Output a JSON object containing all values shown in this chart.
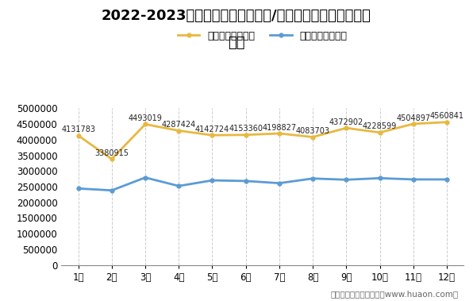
{
  "title_line1": "2022-2023年江苏省（境内目的地/货源地）进、出口额月度",
  "title_line2": "统计",
  "months": [
    "1月",
    "2月",
    "3月",
    "4月",
    "5月",
    "6月",
    "7月",
    "8月",
    "9月",
    "10月",
    "11月",
    "12月"
  ],
  "export_values": [
    4131783,
    3380915,
    4493019,
    4287424,
    4142724,
    4153360,
    4198827,
    4083703,
    4372902,
    4228599,
    4504897,
    4560841
  ],
  "import_values": [
    2440000,
    2380000,
    2790000,
    2520000,
    2700000,
    2680000,
    2610000,
    2760000,
    2720000,
    2770000,
    2730000,
    2730000
  ],
  "export_color": "#E8B840",
  "import_color": "#5B9BD5",
  "export_label": "出口额（万美元）",
  "import_label": "进口额（万美元）",
  "ylim_min": 0,
  "ylim_max": 5000000,
  "yticks": [
    0,
    500000,
    1000000,
    1500000,
    2000000,
    2500000,
    3000000,
    3500000,
    4000000,
    4500000,
    5000000
  ],
  "bg_color": "#ffffff",
  "footer": "制图：华经产业研究院（www.huaon.com）",
  "title_fontsize": 13,
  "legend_fontsize": 9,
  "annot_fontsize": 7,
  "tick_fontsize": 8.5,
  "footer_fontsize": 7.5,
  "vline_color": "#AAAAAA",
  "annot_color": "#222222"
}
